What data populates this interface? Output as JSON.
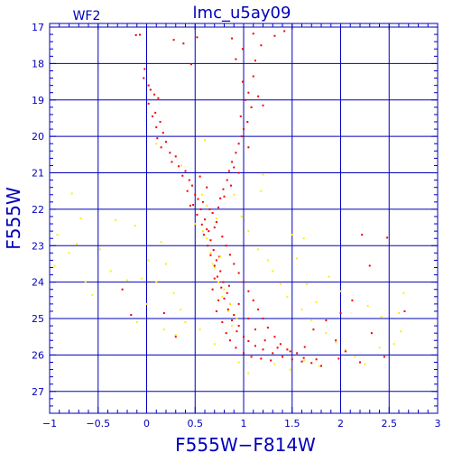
{
  "chart_data": {
    "type": "scatter",
    "title": "lmc_u5ay09",
    "panel_label": "WF2",
    "xlabel": "F555W−F814W",
    "ylabel": "F555W",
    "xlim": [
      -1,
      3
    ],
    "ylim": [
      27.6,
      16.9
    ],
    "y_inverted": true,
    "grid": true,
    "x_ticks": [
      {
        "value": -1,
        "label": "−1"
      },
      {
        "value": -0.5,
        "label": "−0.5"
      },
      {
        "value": 0,
        "label": "0"
      },
      {
        "value": 0.5,
        "label": "0.5"
      },
      {
        "value": 1,
        "label": "1"
      },
      {
        "value": 1.5,
        "label": "1.5"
      },
      {
        "value": 2,
        "label": "2"
      },
      {
        "value": 2.5,
        "label": "2.5"
      },
      {
        "value": 3,
        "label": "3"
      }
    ],
    "y_ticks": [
      {
        "value": 17,
        "label": "17"
      },
      {
        "value": 18,
        "label": "18"
      },
      {
        "value": 19,
        "label": "19"
      },
      {
        "value": 20,
        "label": "20"
      },
      {
        "value": 21,
        "label": "21"
      },
      {
        "value": 22,
        "label": "22"
      },
      {
        "value": 23,
        "label": "23"
      },
      {
        "value": 24,
        "label": "24"
      },
      {
        "value": 25,
        "label": "25"
      },
      {
        "value": 26,
        "label": "26"
      },
      {
        "value": 27,
        "label": "27"
      }
    ],
    "colors": {
      "axis": "#0000bb",
      "grid": "#0000bb",
      "text": "#0000bb",
      "red": "#ee0000",
      "yellow": "#ffee00"
    },
    "series": [
      {
        "color": "#ee0000",
        "points": [
          [
            -0.11,
            17.22
          ],
          [
            -0.07,
            17.21
          ],
          [
            0.28,
            17.35
          ],
          [
            0.52,
            17.28
          ],
          [
            0.88,
            17.31
          ],
          [
            1.1,
            17.18
          ],
          [
            1.32,
            17.24
          ],
          [
            1.42,
            17.11
          ],
          [
            0.38,
            17.45
          ],
          [
            0.99,
            17.6
          ],
          [
            1.18,
            17.5
          ],
          [
            0.46,
            18.02
          ],
          [
            0.92,
            17.88
          ],
          [
            1.12,
            17.92
          ],
          [
            -0.02,
            18.15
          ],
          [
            -0.03,
            18.4
          ],
          [
            0.02,
            18.6
          ],
          [
            0.04,
            18.72
          ],
          [
            0.08,
            18.85
          ],
          [
            0.12,
            18.95
          ],
          [
            0.02,
            19.1
          ],
          [
            0.09,
            19.35
          ],
          [
            0.06,
            19.45
          ],
          [
            0.14,
            19.6
          ],
          [
            0.1,
            19.75
          ],
          [
            0.17,
            19.9
          ],
          [
            0.11,
            20.05
          ],
          [
            0.2,
            20.15
          ],
          [
            0.15,
            20.3
          ],
          [
            0.24,
            20.45
          ],
          [
            0.3,
            20.55
          ],
          [
            0.26,
            20.7
          ],
          [
            0.33,
            20.82
          ],
          [
            0.4,
            20.95
          ],
          [
            0.37,
            21.08
          ],
          [
            0.44,
            21.2
          ],
          [
            0.47,
            21.35
          ],
          [
            0.42,
            21.5
          ],
          [
            0.5,
            21.6
          ],
          [
            0.53,
            21.72
          ],
          [
            0.48,
            21.88
          ],
          [
            0.56,
            22.0
          ],
          [
            0.52,
            22.15
          ],
          [
            0.6,
            22.28
          ],
          [
            0.57,
            22.42
          ],
          [
            0.62,
            22.55
          ],
          [
            0.59,
            22.7
          ],
          [
            0.66,
            22.85
          ],
          [
            0.63,
            23.0
          ],
          [
            0.69,
            23.12
          ],
          [
            0.66,
            23.26
          ],
          [
            0.72,
            23.4
          ],
          [
            0.7,
            23.55
          ],
          [
            0.76,
            23.7
          ],
          [
            0.73,
            23.85
          ],
          [
            0.79,
            24.0
          ],
          [
            0.77,
            24.15
          ],
          [
            0.83,
            24.3
          ],
          [
            0.8,
            24.45
          ],
          [
            0.86,
            24.6
          ],
          [
            0.84,
            24.75
          ],
          [
            0.9,
            24.9
          ],
          [
            0.88,
            25.05
          ],
          [
            0.95,
            25.2
          ],
          [
            0.93,
            25.35
          ],
          [
            1.0,
            25.5
          ],
          [
            1.05,
            25.62
          ],
          [
            1.12,
            25.75
          ],
          [
            1.2,
            25.85
          ],
          [
            1.3,
            25.95
          ],
          [
            1.4,
            26.05
          ],
          [
            1.5,
            26.12
          ],
          [
            1.6,
            26.18
          ],
          [
            1.7,
            26.22
          ],
          [
            0.99,
            18.5
          ],
          [
            1.05,
            18.8
          ],
          [
            1.02,
            19.0
          ],
          [
            1.08,
            19.2
          ],
          [
            0.97,
            19.45
          ],
          [
            1.04,
            19.6
          ],
          [
            1.0,
            19.8
          ],
          [
            0.98,
            20.0
          ],
          [
            0.95,
            20.2
          ],
          [
            0.92,
            20.45
          ],
          [
            0.88,
            20.7
          ],
          [
            0.85,
            20.95
          ],
          [
            0.83,
            21.2
          ],
          [
            0.79,
            21.45
          ],
          [
            0.76,
            21.7
          ],
          [
            0.74,
            21.95
          ],
          [
            1.1,
            18.35
          ],
          [
            1.15,
            18.9
          ],
          [
            1.2,
            19.15
          ],
          [
            1.05,
            20.3
          ],
          [
            0.9,
            20.85
          ],
          [
            0.95,
            21.0
          ],
          [
            0.87,
            21.35
          ],
          [
            0.8,
            21.65
          ],
          [
            0.55,
            21.1
          ],
          [
            0.45,
            21.9
          ],
          [
            0.62,
            21.4
          ],
          [
            0.58,
            21.8
          ],
          [
            0.68,
            22.1
          ],
          [
            0.72,
            22.35
          ],
          [
            0.64,
            22.6
          ],
          [
            0.78,
            22.75
          ],
          [
            0.82,
            23.0
          ],
          [
            0.86,
            23.25
          ],
          [
            0.9,
            23.5
          ],
          [
            0.95,
            23.75
          ],
          [
            1.0,
            24.0
          ],
          [
            1.05,
            24.25
          ],
          [
            1.1,
            24.5
          ],
          [
            1.15,
            24.75
          ],
          [
            1.2,
            25.0
          ],
          [
            1.25,
            25.25
          ],
          [
            1.32,
            25.5
          ],
          [
            1.38,
            25.7
          ],
          [
            1.45,
            25.85
          ],
          [
            1.55,
            25.95
          ],
          [
            1.62,
            26.08
          ],
          [
            1.75,
            26.12
          ],
          [
            0.7,
            23.9
          ],
          [
            0.68,
            24.2
          ],
          [
            0.74,
            24.5
          ],
          [
            0.72,
            24.8
          ],
          [
            0.78,
            25.1
          ],
          [
            0.82,
            25.4
          ],
          [
            0.86,
            25.6
          ],
          [
            0.92,
            25.8
          ],
          [
            1.0,
            25.95
          ],
          [
            1.08,
            26.05
          ],
          [
            1.18,
            26.1
          ],
          [
            1.28,
            26.15
          ],
          [
            0.65,
            22.0
          ],
          [
            0.7,
            22.5
          ],
          [
            0.75,
            23.3
          ],
          [
            0.85,
            24.1
          ],
          [
            0.95,
            24.6
          ],
          [
            1.05,
            25.0
          ],
          [
            1.12,
            25.3
          ],
          [
            1.22,
            25.6
          ],
          [
            1.35,
            25.8
          ],
          [
            1.48,
            25.9
          ],
          [
            2.22,
            22.7
          ],
          [
            2.48,
            22.78
          ],
          [
            2.3,
            23.55
          ],
          [
            2.66,
            24.8
          ],
          [
            1.63,
            25.78
          ],
          [
            1.98,
            26.1
          ],
          [
            2.05,
            25.9
          ],
          [
            2.2,
            26.2
          ],
          [
            2.32,
            25.4
          ],
          [
            2.45,
            26.05
          ],
          [
            -0.16,
            24.9
          ],
          [
            0.18,
            24.85
          ],
          [
            -0.25,
            24.2
          ],
          [
            0.3,
            25.5
          ],
          [
            1.85,
            25.05
          ],
          [
            1.95,
            25.6
          ],
          [
            2.12,
            24.5
          ],
          [
            1.72,
            25.3
          ],
          [
            2.0,
            24.85
          ],
          [
            1.8,
            26.3
          ]
        ]
      },
      {
        "color": "#ffee00",
        "points": [
          [
            -0.77,
            21.57
          ],
          [
            -0.68,
            22.25
          ],
          [
            -0.92,
            22.7
          ],
          [
            -0.72,
            22.95
          ],
          [
            -0.8,
            23.2
          ],
          [
            -0.95,
            23.55
          ],
          [
            -0.63,
            24.0
          ],
          [
            -0.56,
            24.35
          ],
          [
            -0.37,
            23.7
          ],
          [
            -0.2,
            23.95
          ],
          [
            -0.12,
            22.45
          ],
          [
            0.02,
            23.4
          ],
          [
            -0.05,
            23.9
          ],
          [
            0.0,
            24.6
          ],
          [
            -0.32,
            22.3
          ],
          [
            -0.48,
            23.1
          ],
          [
            0.1,
            24.0
          ],
          [
            0.2,
            23.5
          ],
          [
            0.15,
            22.9
          ],
          [
            0.28,
            24.3
          ],
          [
            0.35,
            24.75
          ],
          [
            0.4,
            25.1
          ],
          [
            0.3,
            25.45
          ],
          [
            0.18,
            25.3
          ],
          [
            -0.1,
            25.1
          ],
          [
            1.2,
            21.05
          ],
          [
            1.18,
            21.5
          ],
          [
            0.98,
            22.2
          ],
          [
            1.05,
            22.6
          ],
          [
            1.15,
            23.1
          ],
          [
            1.25,
            23.4
          ],
          [
            1.3,
            23.7
          ],
          [
            1.38,
            24.05
          ],
          [
            1.45,
            24.4
          ],
          [
            1.6,
            24.75
          ],
          [
            1.7,
            25.05
          ],
          [
            1.85,
            25.4
          ],
          [
            1.95,
            25.65
          ],
          [
            2.05,
            25.85
          ],
          [
            2.15,
            26.05
          ],
          [
            2.25,
            26.25
          ],
          [
            2.4,
            25.8
          ],
          [
            1.55,
            23.35
          ],
          [
            1.65,
            24.05
          ],
          [
            1.75,
            24.55
          ],
          [
            1.88,
            23.85
          ],
          [
            2.0,
            24.25
          ],
          [
            2.28,
            24.65
          ],
          [
            2.42,
            24.95
          ],
          [
            2.6,
            24.85
          ],
          [
            2.62,
            25.35
          ],
          [
            2.55,
            25.7
          ],
          [
            2.65,
            24.3
          ],
          [
            1.5,
            22.7
          ],
          [
            1.62,
            22.8
          ],
          [
            0.5,
            22.4
          ],
          [
            0.62,
            22.8
          ],
          [
            0.66,
            23.2
          ],
          [
            0.7,
            23.6
          ],
          [
            0.74,
            24.0
          ],
          [
            0.78,
            24.4
          ],
          [
            0.84,
            24.8
          ],
          [
            0.88,
            25.2
          ],
          [
            0.62,
            21.9
          ],
          [
            0.58,
            22.6
          ],
          [
            0.68,
            23.5
          ],
          [
            0.76,
            23.3
          ],
          [
            0.8,
            24.2
          ],
          [
            0.86,
            24.6
          ],
          [
            0.93,
            25.0
          ],
          [
            0.57,
            21.6
          ],
          [
            0.72,
            22.25
          ],
          [
            1.32,
            26.25
          ],
          [
            1.48,
            26.4
          ],
          [
            1.62,
            26.15
          ],
          [
            1.78,
            26.3
          ],
          [
            0.9,
            21.6
          ],
          [
            0.36,
            20.8
          ],
          [
            0.1,
            20.2
          ],
          [
            0.6,
            20.1
          ],
          [
            1.05,
            26.5
          ],
          [
            0.95,
            26.2
          ],
          [
            0.7,
            25.7
          ],
          [
            0.55,
            25.3
          ]
        ]
      }
    ]
  }
}
